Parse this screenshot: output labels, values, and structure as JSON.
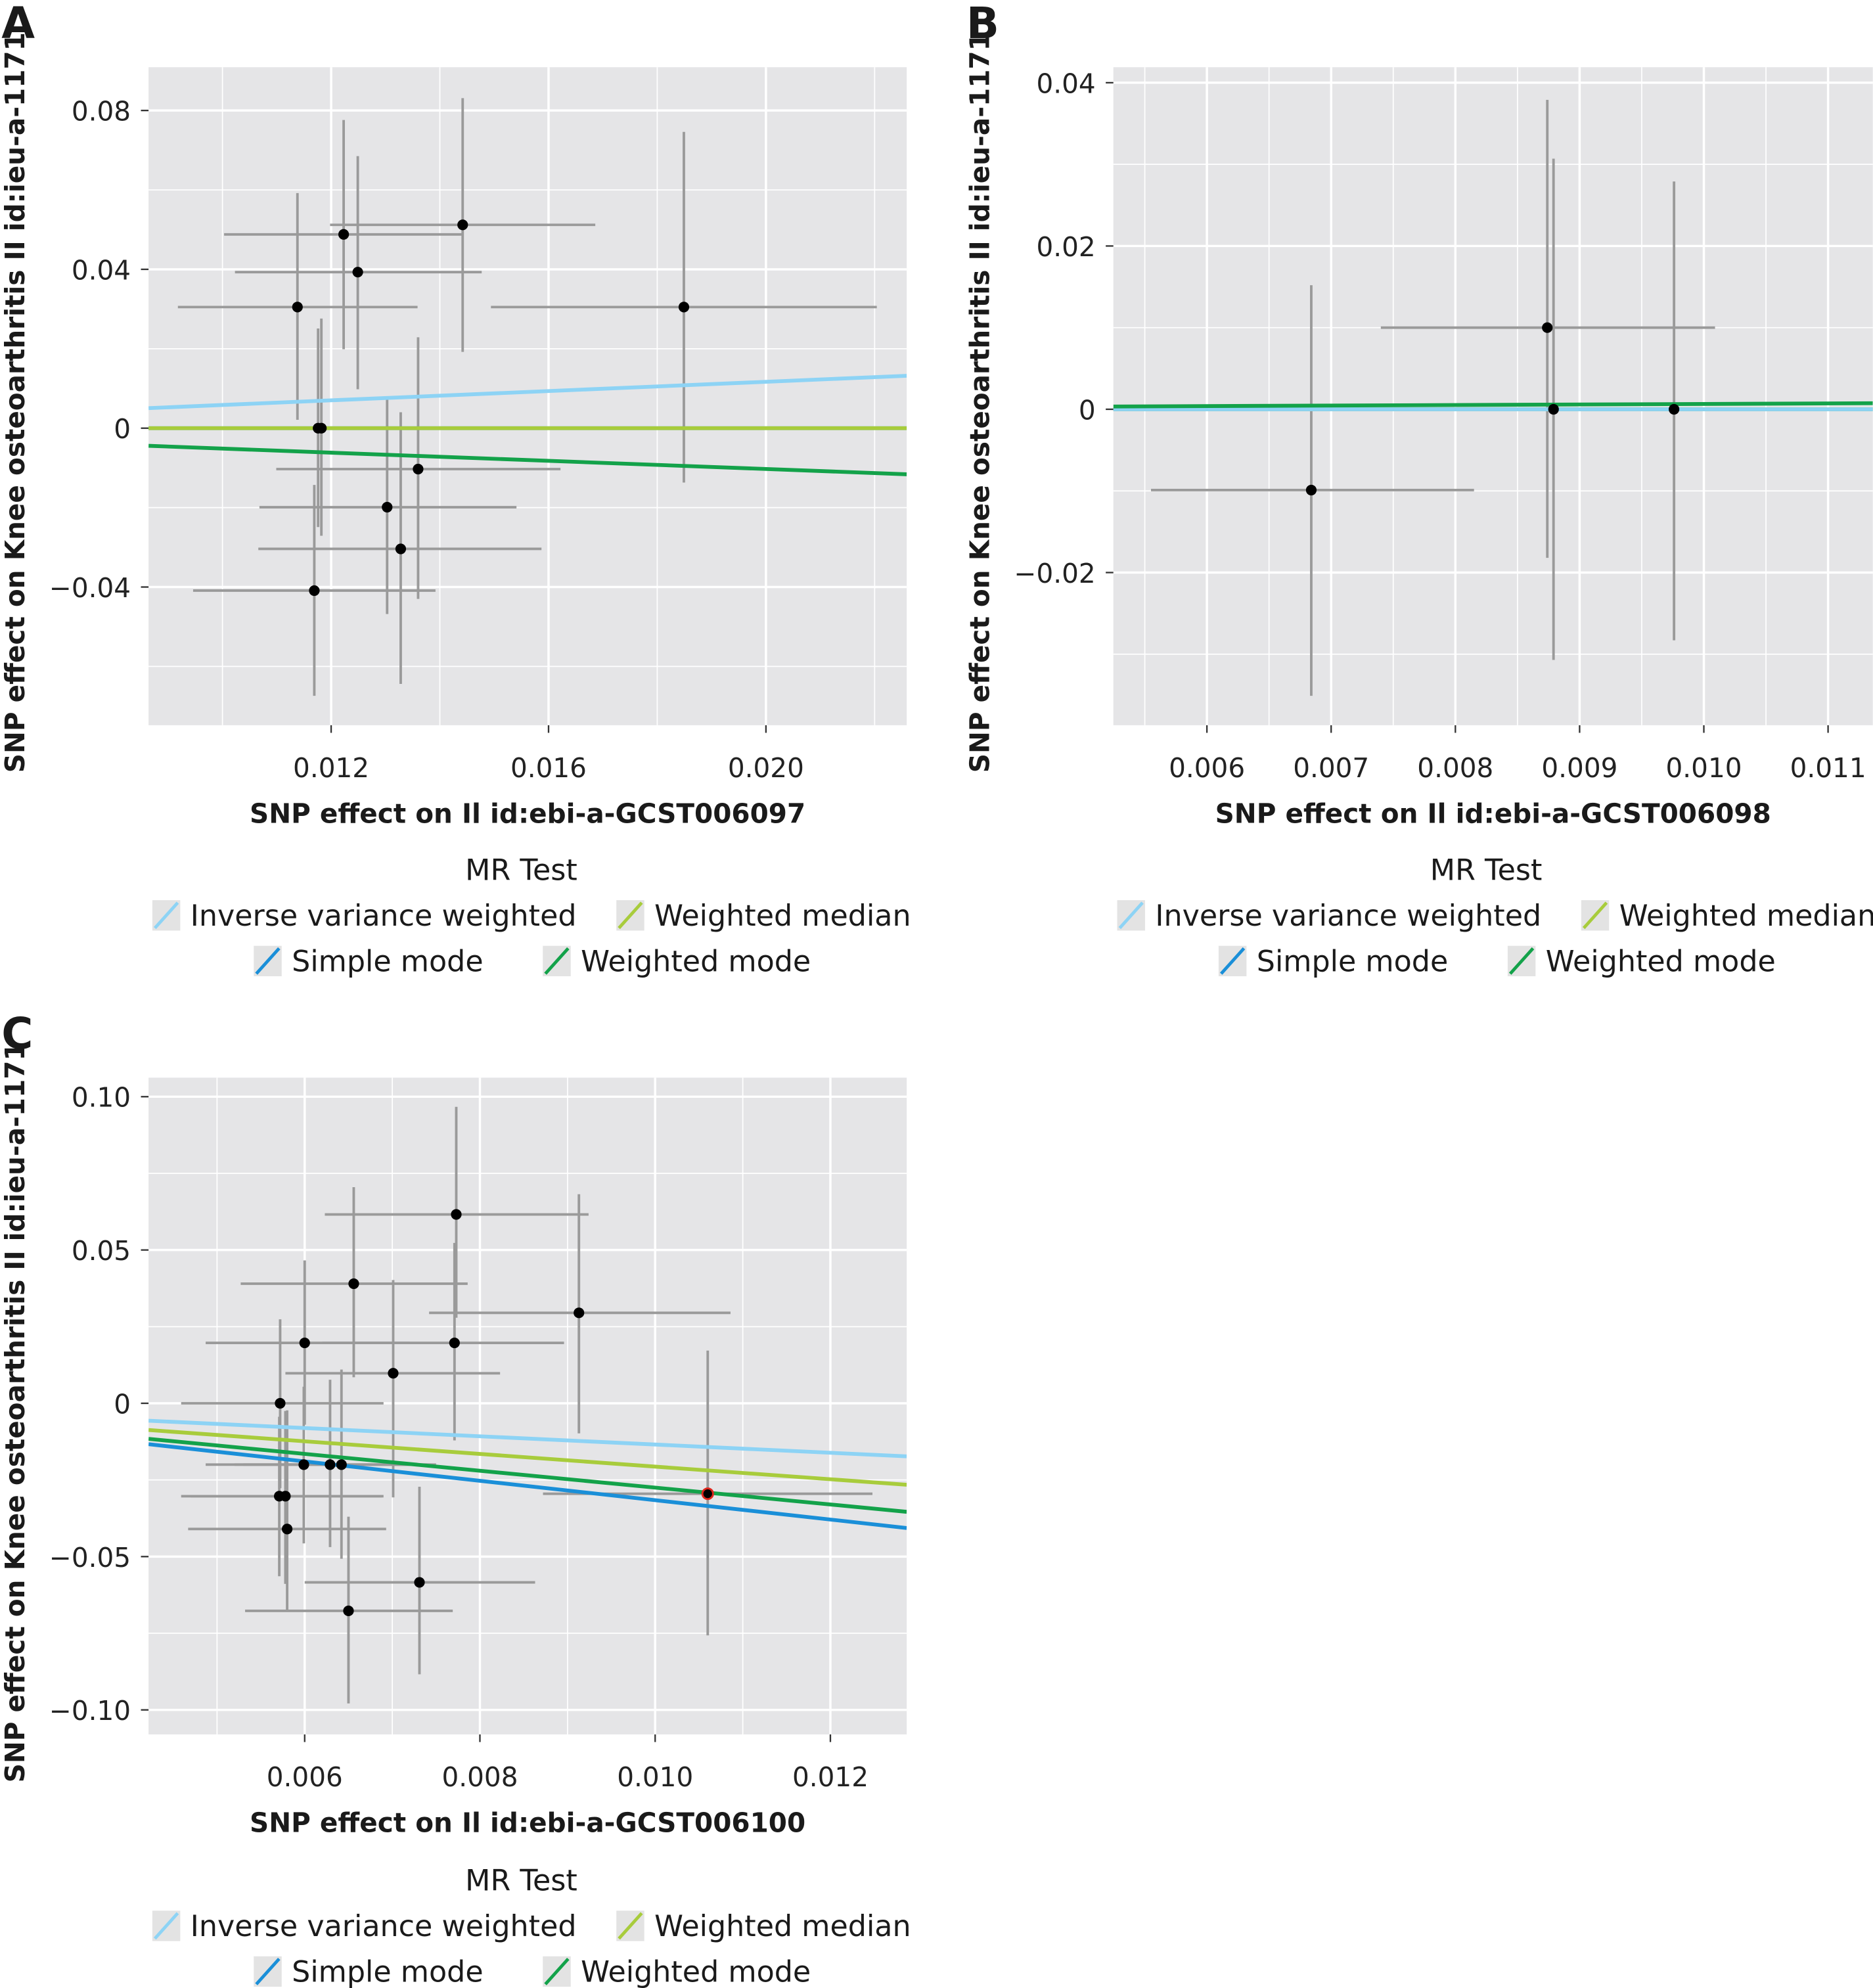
{
  "legend": {
    "title": "MR Test",
    "items": [
      {
        "label": "Inverse variance weighted",
        "color": "#8dd3f5"
      },
      {
        "label": "Weighted median",
        "color": "#a8cc3c"
      },
      {
        "label": "Simple mode",
        "color": "#1a8fd8"
      },
      {
        "label": "Weighted mode",
        "color": "#13a24a"
      }
    ]
  },
  "point_color": "#000000",
  "errorbar_color": "#9a9a9a",
  "panel_background": "#e5e5e7",
  "chart_data": [
    {
      "panel": "A",
      "type": "scatter",
      "xlabel": "SNP effect on Il id:ebi-a-GCST006097",
      "ylabel": "SNP effect on Knee osteoarthritis II id:ieu-a-1171",
      "xlim": [
        0.00864,
        0.02259
      ],
      "ylim": [
        -0.0748,
        0.0909
      ],
      "xticks": [
        {
          "v": 0.012,
          "label": "0.012"
        },
        {
          "v": 0.016,
          "label": "0.016"
        },
        {
          "v": 0.02,
          "label": "0.020"
        }
      ],
      "xminor": [
        0.01,
        0.014,
        0.018,
        0.022
      ],
      "yticks": [
        {
          "v": 0.08,
          "label": "0.08"
        },
        {
          "v": 0.04,
          "label": "0.04"
        },
        {
          "v": 0,
          "label": "0"
        },
        {
          "v": -0.04,
          "label": "−0.04"
        }
      ],
      "yminor": [
        0.06,
        0.02,
        -0.02,
        -0.06
      ],
      "grid": true,
      "legend_position": "bottom",
      "points": [
        {
          "x": 0.01138,
          "y": 0.0305,
          "xlo": 0.00918,
          "xhi": 0.01359,
          "ylo": 0.0021,
          "yhi": 0.0592
        },
        {
          "x": 0.01223,
          "y": 0.0488,
          "xlo": 0.01003,
          "xhi": 0.01444,
          "ylo": 0.0199,
          "yhi": 0.0776
        },
        {
          "x": 0.01249,
          "y": 0.0393,
          "xlo": 0.01023,
          "xhi": 0.01477,
          "ylo": 0.0098,
          "yhi": 0.0685
        },
        {
          "x": 0.01442,
          "y": 0.0512,
          "xlo": 0.01198,
          "xhi": 0.01686,
          "ylo": 0.0192,
          "yhi": 0.0831
        },
        {
          "x": 0.01849,
          "y": 0.0305,
          "xlo": 0.01494,
          "xhi": 0.02204,
          "ylo": -0.0137,
          "yhi": 0.0746
        },
        {
          "x": 0.01176,
          "y": 0.0,
          "ylo": -0.0249,
          "yhi": 0.0251
        },
        {
          "x": 0.01182,
          "y": 0.0,
          "ylo": -0.0271,
          "yhi": 0.0276
        },
        {
          "x": 0.0136,
          "y": -0.0103,
          "xlo": 0.01099,
          "xhi": 0.01622,
          "ylo": -0.043,
          "yhi": 0.0229
        },
        {
          "x": 0.01303,
          "y": -0.0199,
          "xlo": 0.01068,
          "xhi": 0.01541,
          "ylo": -0.0468,
          "yhi": 0.0073
        },
        {
          "x": 0.01328,
          "y": -0.0304,
          "xlo": 0.01066,
          "xhi": 0.01587,
          "ylo": -0.0644,
          "yhi": 0.004
        },
        {
          "x": 0.01169,
          "y": -0.0409,
          "xlo": 0.00946,
          "xhi": 0.01392,
          "ylo": -0.0674,
          "yhi": -0.0143
        }
      ],
      "lines": [
        {
          "name": "Simple mode",
          "slope": 0.0
        },
        {
          "name": "Weighted median",
          "slope": 0.0
        },
        {
          "name": "Inverse variance weighted",
          "slope": 0.584
        },
        {
          "name": "Weighted mode",
          "slope": -0.514
        }
      ]
    },
    {
      "panel": "B",
      "type": "scatter",
      "xlabel": "SNP effect on Il id:ebi-a-GCST006098",
      "ylabel": "SNP effect on Knee osteoarthritis II id:ieu-a-1171",
      "xlim": [
        0.005247,
        0.01136
      ],
      "ylim": [
        -0.0387,
        0.0419
      ],
      "xticks": [
        {
          "v": 0.006,
          "label": "0.006"
        },
        {
          "v": 0.007,
          "label": "0.007"
        },
        {
          "v": 0.008,
          "label": "0.008"
        },
        {
          "v": 0.009,
          "label": "0.009"
        },
        {
          "v": 0.01,
          "label": "0.010"
        },
        {
          "v": 0.011,
          "label": "0.011"
        }
      ],
      "xminor": [
        0.0055,
        0.0065,
        0.0075,
        0.0085,
        0.0095,
        0.0105
      ],
      "yticks": [
        {
          "v": 0.04,
          "label": "0.04"
        },
        {
          "v": 0.02,
          "label": "0.02"
        },
        {
          "v": 0,
          "label": "0"
        },
        {
          "v": -0.02,
          "label": "−0.02"
        }
      ],
      "yminor": [
        0.03,
        0.01,
        -0.01,
        -0.03
      ],
      "grid": true,
      "legend_position": "bottom",
      "points": [
        {
          "x": 0.00684,
          "y": -0.0099,
          "xlo": 0.00555,
          "xhi": 0.00815,
          "ylo": -0.0351,
          "yhi": 0.0152
        },
        {
          "x": 0.00874,
          "y": 0.01,
          "xlo": 0.0074,
          "xhi": 0.01009,
          "ylo": -0.0182,
          "yhi": 0.0379
        },
        {
          "x": 0.00879,
          "y": 0.0,
          "ylo": -0.0307,
          "yhi": 0.0307
        },
        {
          "x": 0.00976,
          "y": 0.0,
          "ylo": -0.0283,
          "yhi": 0.0279
        }
      ],
      "lines": [
        {
          "name": "Simple mode",
          "slope": 0.0
        },
        {
          "name": "Weighted median",
          "slope": 0.0
        },
        {
          "name": "Inverse variance weighted",
          "slope": 0.0
        },
        {
          "name": "Weighted mode",
          "slope": 0.065
        }
      ]
    },
    {
      "panel": "C",
      "type": "scatter",
      "xlabel": "SNP effect on Il id:ebi-a-GCST006100",
      "ylabel": "SNP effect on Knee osteoarthritis II id:ieu-a-1171",
      "xlim": [
        0.004218,
        0.012871
      ],
      "ylim": [
        -0.108,
        0.1062
      ],
      "xticks": [
        {
          "v": 0.006,
          "label": "0.006"
        },
        {
          "v": 0.008,
          "label": "0.008"
        },
        {
          "v": 0.01,
          "label": "0.010"
        },
        {
          "v": 0.012,
          "label": "0.012"
        }
      ],
      "xminor": [
        0.005,
        0.007,
        0.009,
        0.011
      ],
      "yticks": [
        {
          "v": 0.1,
          "label": "0.10"
        },
        {
          "v": 0.05,
          "label": "0.05"
        },
        {
          "v": 0,
          "label": "0"
        },
        {
          "v": -0.05,
          "label": "−0.05"
        },
        {
          "v": -0.1,
          "label": "−0.10"
        }
      ],
      "yminor": [
        0.075,
        0.025,
        -0.025,
        -0.075
      ],
      "grid": true,
      "legend_position": "bottom",
      "points": [
        {
          "x": 0.00773,
          "y": 0.0616,
          "xlo": 0.00623,
          "xhi": 0.00924,
          "ylo": 0.0279,
          "yhi": 0.0967
        },
        {
          "x": 0.00656,
          "y": 0.039,
          "xlo": 0.00527,
          "xhi": 0.00786,
          "ylo": 0.0085,
          "yhi": 0.0705
        },
        {
          "x": 0.00913,
          "y": 0.0295,
          "xlo": 0.00742,
          "xhi": 0.01086,
          "ylo": -0.0098,
          "yhi": 0.0682
        },
        {
          "x": 0.006,
          "y": 0.0197,
          "xlo": 0.00487,
          "xhi": 0.0072,
          "ylo": -0.007,
          "yhi": 0.0466
        },
        {
          "x": 0.00771,
          "y": 0.0197,
          "xlo": 0.0062,
          "xhi": 0.00896,
          "ylo": -0.0121,
          "yhi": 0.0523
        },
        {
          "x": 0.00701,
          "y": 0.0098,
          "xlo": 0.00578,
          "xhi": 0.00823,
          "ylo": -0.0307,
          "yhi": 0.0402
        },
        {
          "x": 0.00572,
          "y": 0.0,
          "xlo": 0.00459,
          "xhi": 0.0069,
          "ylo": -0.0277,
          "yhi": 0.0274
        },
        {
          "x": 0.00599,
          "y": -0.02,
          "xlo": 0.00487,
          "xhi": 0.00731,
          "ylo": -0.0457,
          "yhi": 0.0054
        },
        {
          "x": 0.00629,
          "y": -0.02,
          "xlo": 0.0052,
          "xhi": 0.0074,
          "ylo": -0.0469,
          "yhi": 0.0077
        },
        {
          "x": 0.00642,
          "y": -0.02,
          "xlo": 0.0053,
          "xhi": 0.0075,
          "ylo": -0.0507,
          "yhi": 0.011
        },
        {
          "x": 0.00571,
          "y": -0.0303,
          "xlo": 0.00459,
          "xhi": 0.00688,
          "ylo": -0.0564,
          "yhi": -0.0044
        },
        {
          "x": 0.00578,
          "y": -0.0303,
          "xlo": 0.0047,
          "xhi": 0.0069,
          "ylo": -0.0589,
          "yhi": -0.0025
        },
        {
          "x": 0.0058,
          "y": -0.041,
          "xlo": 0.00467,
          "xhi": 0.00693,
          "ylo": -0.0674,
          "yhi": -0.0023
        },
        {
          "x": 0.00731,
          "y": -0.0584,
          "xlo": 0.006,
          "xhi": 0.00863,
          "ylo": -0.0884,
          "yhi": -0.0272
        },
        {
          "x": 0.0065,
          "y": -0.0677,
          "xlo": 0.00532,
          "xhi": 0.00769,
          "ylo": -0.0979,
          "yhi": -0.037
        },
        {
          "x": 0.0106,
          "y": -0.0295,
          "xlo": 0.00872,
          "xhi": 0.01248,
          "ylo": -0.0757,
          "yhi": 0.0172,
          "color": "#e0261c"
        }
      ],
      "lines": [
        {
          "name": "Inverse variance weighted",
          "slope": -1.345
        },
        {
          "name": "Weighted median",
          "slope": -2.065
        },
        {
          "name": "Weighted mode",
          "slope": -2.75
        },
        {
          "name": "Simple mode",
          "slope": -3.16
        }
      ]
    }
  ]
}
